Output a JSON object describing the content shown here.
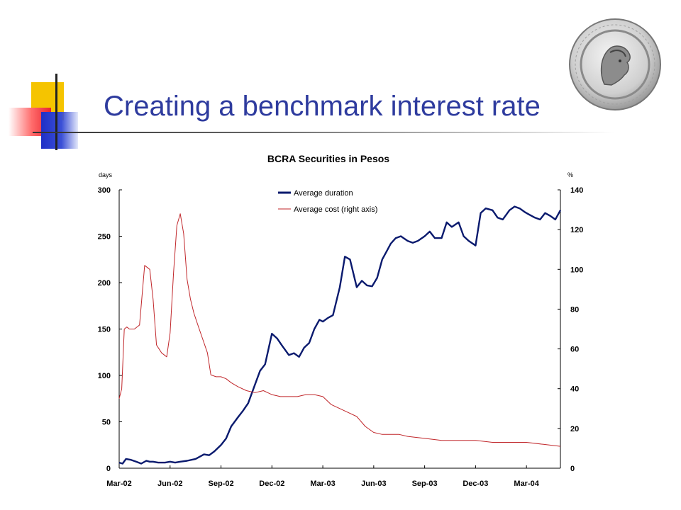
{
  "slide": {
    "title": "Creating a benchmark interest rate"
  },
  "chart_data": {
    "type": "line",
    "title": "BCRA Securities in Pesos",
    "y_unit_left": "days",
    "y_unit_right": "%",
    "categories": [
      "Mar-02",
      "Jun-02",
      "Sep-02",
      "Dec-02",
      "Mar-03",
      "Jun-03",
      "Sep-03",
      "Dec-03",
      "Mar-04"
    ],
    "x_range": [
      0,
      26
    ],
    "ylim_left": [
      0,
      300
    ],
    "ylim_right": [
      0,
      140
    ],
    "yticks_left": [
      0,
      50,
      100,
      150,
      200,
      250,
      300
    ],
    "yticks_right": [
      0,
      20,
      40,
      60,
      80,
      100,
      120,
      140
    ],
    "grid": false,
    "legend_position": "top-center",
    "series": [
      {
        "name": "Average duration",
        "axis": "left",
        "color": "#0a1a6e",
        "x": [
          0,
          0.2,
          0.4,
          0.7,
          1.0,
          1.3,
          1.6,
          1.8,
          2.0,
          2.3,
          2.7,
          3.0,
          3.3,
          3.6,
          4.0,
          4.5,
          5.0,
          5.3,
          5.6,
          6.0,
          6.3,
          6.6,
          7.0,
          7.3,
          7.6,
          8.0,
          8.3,
          8.6,
          9.0,
          9.3,
          9.6,
          10.0,
          10.3,
          10.6,
          10.9,
          11.2,
          11.5,
          11.8,
          12.0,
          12.3,
          12.6,
          13.0,
          13.3,
          13.6,
          14.0,
          14.3,
          14.6,
          14.9,
          15.2,
          15.5,
          15.8,
          16.0,
          16.3,
          16.6,
          17.0,
          17.3,
          17.6,
          18.0,
          18.3,
          18.6,
          19.0,
          19.3,
          19.6,
          20.0,
          20.3,
          20.6,
          21.0,
          21.3,
          21.6,
          22.0,
          22.3,
          22.6,
          23.0,
          23.3,
          23.6,
          23.9,
          24.2,
          24.5,
          24.8,
          25.1,
          25.4,
          25.7,
          26.0
        ],
        "values": [
          6,
          5,
          10,
          9,
          7,
          5,
          8,
          7,
          7,
          6,
          6,
          7,
          6,
          7,
          8,
          10,
          15,
          14,
          18,
          25,
          32,
          45,
          55,
          62,
          70,
          90,
          105,
          112,
          145,
          140,
          132,
          122,
          124,
          120,
          130,
          135,
          150,
          160,
          158,
          162,
          165,
          195,
          228,
          225,
          195,
          202,
          197,
          196,
          205,
          225,
          235,
          242,
          248,
          250,
          245,
          243,
          245,
          250,
          255,
          248,
          248,
          265,
          260,
          265,
          250,
          245,
          240,
          275,
          280,
          278,
          270,
          268,
          278,
          282,
          280,
          276,
          273,
          270,
          268,
          275,
          272,
          268,
          278
        ]
      },
      {
        "name": "Average cost (right axis)",
        "axis": "right",
        "color": "#c0262a",
        "x": [
          0,
          0.15,
          0.3,
          0.45,
          0.6,
          0.9,
          1.2,
          1.5,
          1.8,
          2.0,
          2.2,
          2.5,
          2.8,
          3.0,
          3.2,
          3.4,
          3.6,
          3.8,
          4.0,
          4.2,
          4.4,
          4.6,
          4.8,
          5.0,
          5.2,
          5.4,
          5.7,
          6.0,
          6.3,
          6.6,
          7.0,
          7.5,
          8.0,
          8.5,
          9.0,
          9.5,
          10.0,
          10.5,
          11.0,
          11.5,
          12.0,
          12.5,
          13.0,
          13.5,
          14.0,
          14.5,
          15.0,
          15.5,
          16.0,
          16.5,
          17.0,
          18.0,
          19.0,
          20.0,
          21.0,
          22.0,
          23.0,
          24.0,
          25.0,
          26.0
        ],
        "values": [
          35,
          40,
          70,
          71,
          70,
          70,
          72,
          102,
          100,
          85,
          62,
          58,
          56,
          68,
          98,
          122,
          128,
          118,
          95,
          85,
          78,
          73,
          68,
          63,
          58,
          47,
          46,
          46,
          45,
          43,
          41,
          39,
          38,
          39,
          37,
          36,
          36,
          36,
          37,
          37,
          36,
          32,
          30,
          28,
          26,
          21,
          18,
          17,
          17,
          17,
          16,
          15,
          14,
          14,
          14,
          13,
          13,
          13,
          12,
          11
        ]
      }
    ]
  }
}
